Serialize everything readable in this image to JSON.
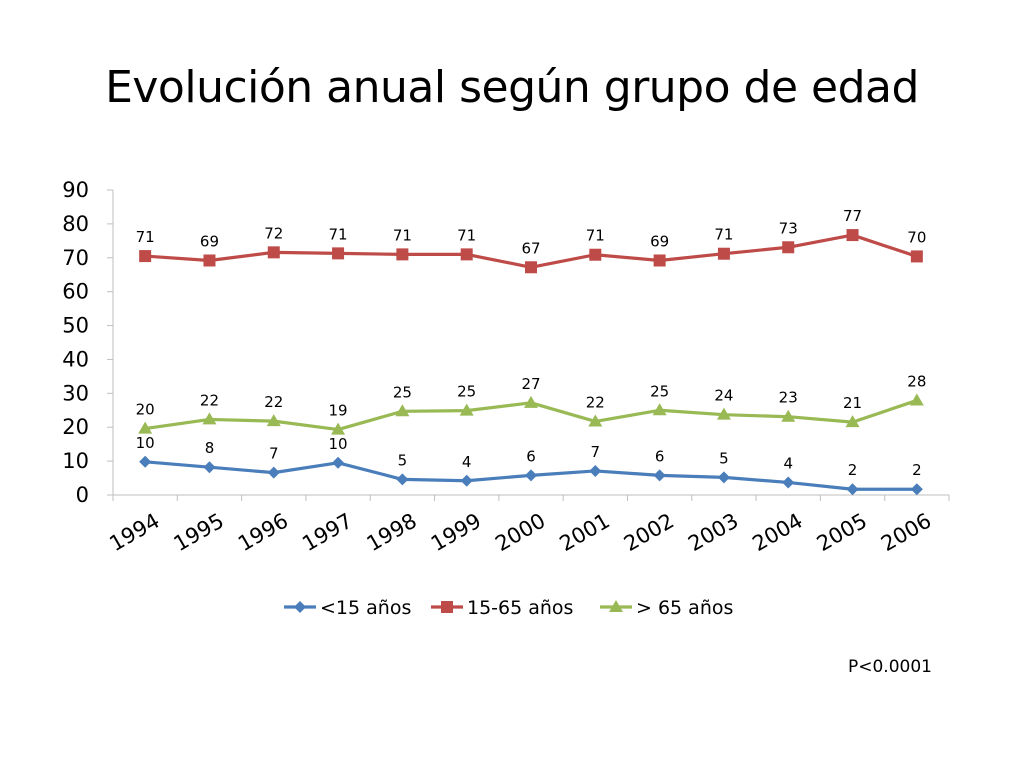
{
  "slide": {
    "title": "Evolución anual según grupo de edad",
    "footnote": "P<0.0001"
  },
  "chart_data": {
    "type": "line",
    "title": "",
    "xlabel": "",
    "ylabel": "",
    "categories": [
      "1994",
      "1995",
      "1996",
      "1997",
      "1998",
      "1999",
      "2000",
      "2001",
      "2002",
      "2003",
      "2004",
      "2005",
      "2006"
    ],
    "ylim": [
      0,
      90
    ],
    "yticks": [
      0,
      10,
      20,
      30,
      40,
      50,
      60,
      70,
      80,
      90
    ],
    "grid": false,
    "legend": "bottom",
    "series": [
      {
        "name": "<15 años",
        "color": "#4a7ebb",
        "marker": "diamond",
        "values": [
          9.8,
          8.2,
          6.6,
          9.5,
          4.6,
          4.2,
          5.8,
          7.1,
          5.8,
          5.2,
          3.7,
          1.7,
          1.7
        ],
        "labels": [
          "10",
          "8",
          "7",
          "10",
          "5",
          "4",
          "6",
          "7",
          "6",
          "5",
          "4",
          "2",
          "2"
        ]
      },
      {
        "name": "15-65 años",
        "color": "#be4b48",
        "marker": "square",
        "values": [
          70.5,
          69.2,
          71.6,
          71.3,
          71.0,
          71.0,
          67.2,
          70.9,
          69.2,
          71.2,
          73.1,
          76.7,
          70.4
        ],
        "labels": [
          "71",
          "69",
          "72",
          "71",
          "71",
          "71",
          "67",
          "71",
          "69",
          "71",
          "73",
          "77",
          "70"
        ]
      },
      {
        "name": "> 65 años",
        "color": "#98b954",
        "marker": "triangle",
        "values": [
          19.6,
          22.3,
          21.8,
          19.3,
          24.7,
          24.9,
          27.2,
          21.7,
          25.0,
          23.7,
          23.1,
          21.5,
          27.9
        ],
        "labels": [
          "20",
          "22",
          "22",
          "19",
          "25",
          "25",
          "27",
          "22",
          "25",
          "24",
          "23",
          "21",
          "28"
        ]
      }
    ]
  }
}
